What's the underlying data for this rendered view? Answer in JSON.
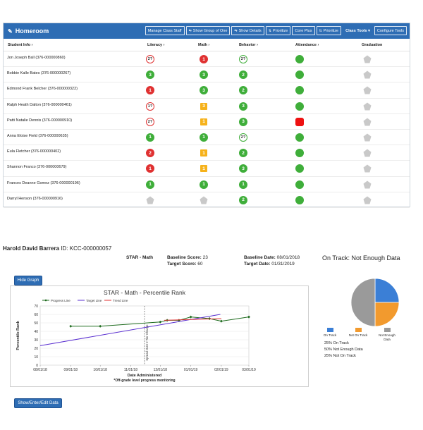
{
  "homeroom": {
    "title": "Homeroom",
    "toolbar": {
      "manage_class_staff": "Manage Class Staff",
      "show_group_of_one": "Show Group of One",
      "show_details": "Show Details",
      "prioritize": "Prioritize",
      "core_plus": "Core Plus",
      "prioritize_2": "Prioritize",
      "class_tools": "Class Tools",
      "configure_tools": "Configure Tools"
    },
    "columns": {
      "student_info": "Student Info",
      "literacy": "Literacy",
      "math": "Math",
      "behavior": "Behavior",
      "attendance": "Attendance",
      "graduation": "Graduation"
    },
    "rows": [
      {
        "name": "Jon Joseph Ball (376-000000860)",
        "literacy": "2?",
        "literacy_style": "outline-red",
        "math": "1",
        "math_style": "red",
        "behavior": "2?",
        "behavior_style": "outline-green",
        "attendance": "green"
      },
      {
        "name": "Bobbie Kalle Bates (376-000000267)",
        "literacy": "3",
        "literacy_style": "green",
        "math": "3",
        "math_style": "green",
        "behavior": "2",
        "behavior_style": "green",
        "attendance": "green"
      },
      {
        "name": "Edmond Frank Belcher (376-000000322)",
        "literacy": "1",
        "literacy_style": "red",
        "math": "3",
        "math_style": "green",
        "behavior": "2",
        "behavior_style": "green",
        "attendance": "green"
      },
      {
        "name": "Ralph Heath Dalton (376-000000461)",
        "literacy": "1?",
        "literacy_style": "outline-red",
        "math": "3",
        "math_style": "gold",
        "behavior": "3",
        "behavior_style": "green",
        "attendance": "green"
      },
      {
        "name": "Patti Natalie Dennis (376-000000910)",
        "literacy": "2?",
        "literacy_style": "outline-red",
        "math": "1",
        "math_style": "gold",
        "behavior": "3",
        "behavior_style": "green",
        "attendance": "red"
      },
      {
        "name": "Anna Eloise Field (376-000000635)",
        "literacy": "1",
        "literacy_style": "green",
        "math": "1",
        "math_style": "green",
        "behavior": "2?",
        "behavior_style": "outline-green",
        "attendance": "green"
      },
      {
        "name": "Eula Fletcher (376-000000402)",
        "literacy": "2",
        "literacy_style": "red",
        "math": "1",
        "math_style": "gold",
        "behavior": "2",
        "behavior_style": "green",
        "attendance": "green"
      },
      {
        "name": "Shannon Franco (376-000000679)",
        "literacy": "1",
        "literacy_style": "red",
        "math": "1",
        "math_style": "gold",
        "behavior": "3",
        "behavior_style": "green",
        "attendance": "green"
      },
      {
        "name": "Frances Deanne Gomez (376-000000196)",
        "literacy": "1",
        "literacy_style": "green",
        "math": "1",
        "math_style": "green",
        "behavior": "1",
        "behavior_style": "green",
        "attendance": "green"
      },
      {
        "name": "Darryl Henson (376-000000916)",
        "literacy": "",
        "literacy_style": "pentagon",
        "math": "",
        "math_style": "pentagon",
        "behavior": "2",
        "behavior_style": "green",
        "attendance": "green"
      }
    ]
  },
  "student": {
    "name": "Harold David Barrera",
    "id_label": "ID:",
    "id": "KCC-000000057",
    "assessment": "STAR - Math",
    "baseline_score_label": "Baseline Score:",
    "baseline_score": "23",
    "target_score_label": "Target Score:",
    "target_score": "60",
    "baseline_date_label": "Baseline Date:",
    "baseline_date": "08/01/2018",
    "target_date_label": "Target Date:",
    "target_date": "01/31/2019"
  },
  "buttons": {
    "hide_graph": "Hide Graph",
    "show_enter_edit": "Show/Enter/Edit Data"
  },
  "chart_data": [
    {
      "type": "line",
      "title": "STAR - Math - Percentile Rank",
      "xlabel": "Date Administered",
      "xlabel_note": "*Off-grade level progress monitoring",
      "ylabel": "Percentile Rank",
      "ylim": [
        0,
        70
      ],
      "yticks": [
        "0",
        "10",
        "20",
        "30",
        "40",
        "50",
        "60",
        "70"
      ],
      "xticks": [
        "08/01/18",
        "09/01/18",
        "10/01/18",
        "11/01/18",
        "12/01/18",
        "01/01/19",
        "02/01/19",
        "03/01/19"
      ],
      "vertical_marker_label": "Spread Over 2 Tier Change",
      "vertical_marker_x": "11/15/18",
      "legend": [
        "Progress Line",
        "Target Line",
        "Trend Line"
      ],
      "series": [
        {
          "name": "Progress Line",
          "color": "#1e6b1e",
          "x": [
            "09/01/18",
            "10/01/18",
            "12/01/18",
            "12/08/18",
            "12/20/18",
            "01/01/19",
            "01/20/19",
            "02/01/19",
            "03/01/19"
          ],
          "values": [
            46,
            46,
            51,
            53,
            53,
            57,
            55,
            52,
            57
          ]
        },
        {
          "name": "Target Line",
          "color": "#5a2fd0",
          "x": [
            "08/01/18",
            "01/31/19"
          ],
          "values": [
            23,
            60
          ]
        },
        {
          "name": "Trend Line",
          "color": "#e03131",
          "x": [
            "12/05/18",
            "02/01/19"
          ],
          "values": [
            53,
            55
          ]
        }
      ]
    },
    {
      "type": "pie",
      "title": "On Track: Not Enough Data",
      "labels": [
        "On Track",
        "Not On Track",
        "Not Enough Data"
      ],
      "values": [
        25,
        25,
        50
      ],
      "colors": [
        "#3b7fd6",
        "#f29a2e",
        "#9a9a9a"
      ],
      "summary": [
        "25% On Track",
        "50% Not Enough Data",
        "25% Not On Track"
      ]
    }
  ]
}
